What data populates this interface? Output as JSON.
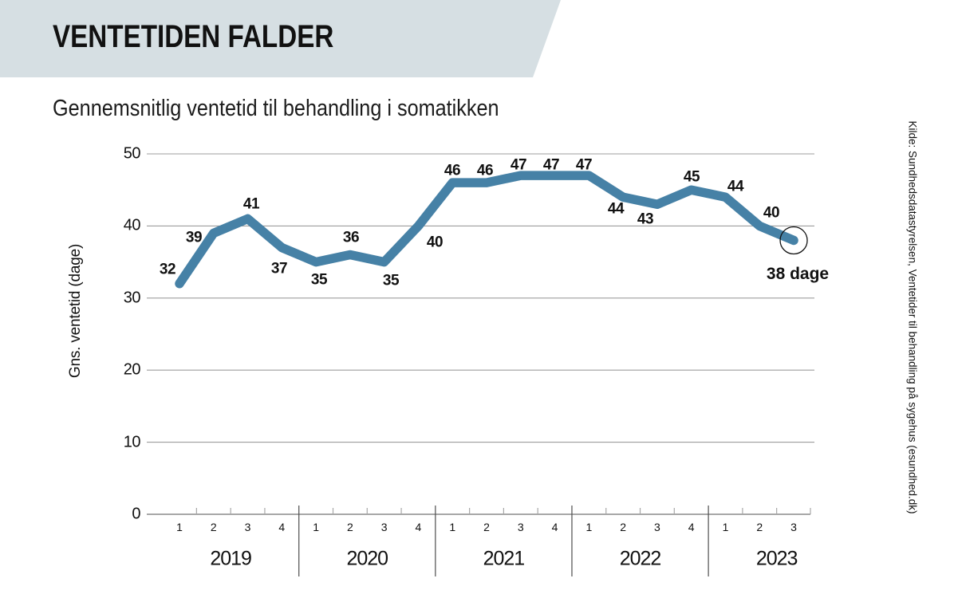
{
  "header": {
    "title": "VENTETIDEN FALDER",
    "subtitle": "Gennemsnitlig ventetid til behandling i somatikken"
  },
  "source": {
    "text": "Kilde: Sundhedsdatastyrelsen, Ventetider til behandling på sygehus (esundhed.dk)"
  },
  "chart_data": {
    "type": "line",
    "title": "Gennemsnitlig ventetid til behandling i somatikken",
    "ylabel": "Gns. ventetid (dage)",
    "ylim": [
      0,
      50
    ],
    "yticks": [
      0,
      10,
      20,
      30,
      40,
      50
    ],
    "grid": true,
    "x_groups": [
      {
        "year": "2019",
        "quarters": [
          "1",
          "2",
          "3",
          "4"
        ]
      },
      {
        "year": "2020",
        "quarters": [
          "1",
          "2",
          "3",
          "4"
        ]
      },
      {
        "year": "2021",
        "quarters": [
          "1",
          "2",
          "3",
          "4"
        ]
      },
      {
        "year": "2022",
        "quarters": [
          "1",
          "2",
          "3",
          "4"
        ]
      },
      {
        "year": "2023",
        "quarters": [
          "1",
          "2",
          "3"
        ]
      }
    ],
    "values": [
      32,
      39,
      41,
      37,
      35,
      36,
      35,
      40,
      46,
      46,
      47,
      47,
      47,
      44,
      43,
      45,
      44,
      40,
      38
    ],
    "line_color": "#4681a6",
    "annotation": {
      "text": "38 dage",
      "target_value": 38
    }
  }
}
